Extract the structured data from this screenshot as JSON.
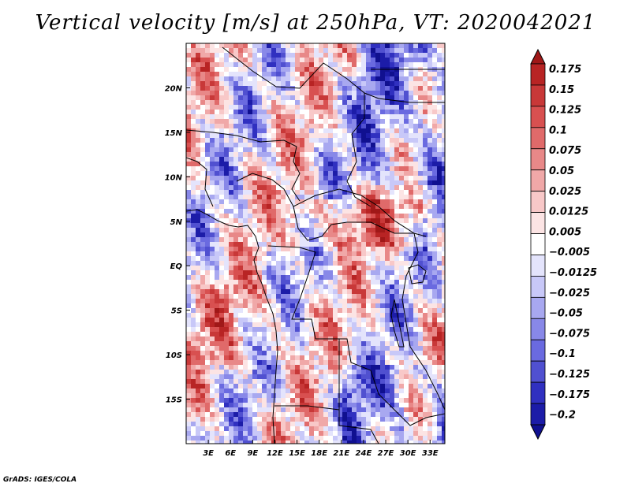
{
  "title": "Vertical velocity [m/s] at 250hPa, VT: 2020042021",
  "credit": "GrADS: IGES/COLA",
  "map": {
    "lon_range": [
      0,
      35
    ],
    "lat_range": [
      -20,
      25
    ],
    "x_ticks": [
      "3E",
      "6E",
      "9E",
      "12E",
      "15E",
      "18E",
      "21E",
      "24E",
      "27E",
      "30E",
      "33E"
    ],
    "x_tick_values": [
      3,
      6,
      9,
      12,
      15,
      18,
      21,
      24,
      27,
      30,
      33
    ],
    "y_ticks": [
      "20N",
      "15N",
      "10N",
      "5N",
      "EQ",
      "5S",
      "10S",
      "15S"
    ],
    "y_tick_values": [
      20,
      15,
      10,
      5,
      0,
      -5,
      -10,
      -15
    ]
  },
  "colorbar": {
    "labels": [
      "0.175",
      "0.15",
      "0.125",
      "0.1",
      "0.075",
      "0.05",
      "0.025",
      "0.0125",
      "0.005",
      "−0.005",
      "−0.0125",
      "−0.025",
      "−0.05",
      "−0.075",
      "−0.1",
      "−0.125",
      "−0.175",
      "−0.2"
    ],
    "colors": [
      "#a01818",
      "#b82424",
      "#c83838",
      "#d85050",
      "#e06a6a",
      "#e88888",
      "#f0a8a8",
      "#f8c8c8",
      "#fce4e4",
      "#ffffff",
      "#e4e4fc",
      "#c8c8f8",
      "#a8a8f0",
      "#8888e8",
      "#6a6ae0",
      "#5050d0",
      "#3030c0",
      "#1c1ca8",
      "#101090"
    ]
  }
}
